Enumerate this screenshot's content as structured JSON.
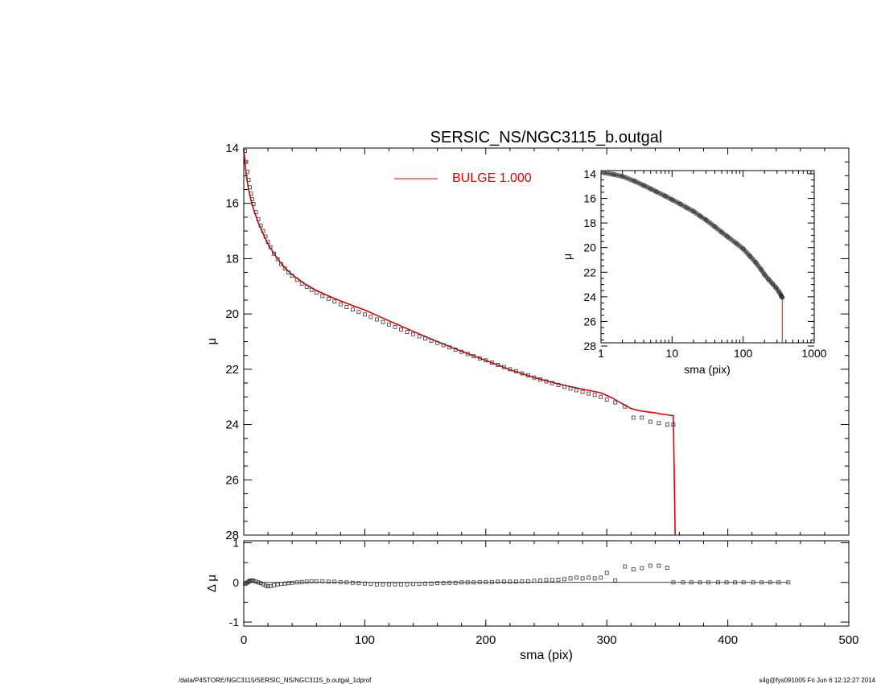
{
  "chart_data": [
    {
      "type": "scatter",
      "title": "SERSIC_NS/NGC3115_b.outgal",
      "xlabel": "",
      "ylabel": "μ",
      "xlim": [
        0,
        500
      ],
      "ylim": [
        28,
        14
      ],
      "x_ticks": [
        "0",
        "100",
        "200",
        "300",
        "400",
        "500"
      ],
      "y_ticks": [
        "14",
        "16",
        "18",
        "20",
        "22",
        "24",
        "26",
        "28"
      ],
      "legend": {
        "label": "BULGE  1.000",
        "color": "#e00000",
        "placement": "top-center"
      },
      "series": [
        {
          "kind": "observed",
          "marker": "open-square",
          "color": "#000000",
          "x": [
            1,
            2,
            3,
            4,
            5,
            6,
            7,
            8,
            10,
            12,
            14,
            16,
            18,
            20,
            22,
            25,
            28,
            31,
            34,
            37,
            40,
            44,
            48,
            52,
            56,
            60,
            65,
            70,
            75,
            80,
            85,
            90,
            95,
            100,
            105,
            110,
            115,
            120,
            125,
            130,
            135,
            140,
            145,
            150,
            155,
            160,
            165,
            170,
            175,
            180,
            185,
            190,
            195,
            200,
            205,
            210,
            215,
            220,
            225,
            230,
            235,
            240,
            245,
            250,
            255,
            260,
            265,
            270,
            275,
            280,
            285,
            290,
            295,
            300,
            307,
            315,
            322,
            329,
            336,
            343,
            350,
            355
          ],
          "y": [
            14.1,
            14.5,
            14.85,
            15.15,
            15.42,
            15.65,
            15.85,
            16.02,
            16.32,
            16.57,
            16.8,
            17.0,
            17.2,
            17.4,
            17.58,
            17.82,
            18.02,
            18.2,
            18.36,
            18.5,
            18.62,
            18.77,
            18.9,
            19.02,
            19.13,
            19.23,
            19.35,
            19.45,
            19.55,
            19.65,
            19.75,
            19.84,
            19.93,
            20.02,
            20.11,
            20.2,
            20.29,
            20.38,
            20.47,
            20.56,
            20.65,
            20.73,
            20.81,
            20.89,
            20.97,
            21.05,
            21.13,
            21.21,
            21.29,
            21.37,
            21.45,
            21.53,
            21.61,
            21.68,
            21.76,
            21.84,
            21.92,
            22.0,
            22.07,
            22.15,
            22.22,
            22.3,
            22.37,
            22.44,
            22.5,
            22.57,
            22.64,
            22.7,
            22.76,
            22.82,
            22.88,
            22.93,
            23.0,
            23.1,
            23.2,
            23.35,
            23.75,
            23.75,
            23.9,
            23.95,
            24.0,
            24.0
          ]
        },
        {
          "kind": "model",
          "name": "BULGE  1.000",
          "color": "#e00000",
          "x": [
            0,
            1,
            2,
            3,
            4,
            5,
            6,
            8,
            10,
            12,
            15,
            18,
            21,
            25,
            30,
            35,
            40,
            50,
            60,
            70,
            80,
            90,
            100,
            120,
            140,
            160,
            180,
            200,
            220,
            240,
            260,
            280,
            295,
            300,
            305,
            310,
            315,
            320,
            325,
            330,
            340,
            345,
            350,
            355,
            356,
            356.5
          ],
          "y": [
            14.0,
            14.55,
            14.95,
            15.25,
            15.5,
            15.7,
            15.88,
            16.2,
            16.45,
            16.7,
            17.0,
            17.3,
            17.55,
            17.82,
            18.12,
            18.38,
            18.58,
            18.9,
            19.15,
            19.35,
            19.53,
            19.7,
            19.86,
            20.25,
            20.63,
            21.0,
            21.35,
            21.68,
            22.02,
            22.3,
            22.53,
            22.72,
            22.85,
            22.95,
            23.05,
            23.18,
            23.3,
            23.42,
            23.48,
            23.52,
            23.58,
            23.62,
            23.65,
            23.68,
            26.5,
            28.5
          ]
        }
      ]
    },
    {
      "type": "line",
      "title": "",
      "xlabel": "sma (pix)",
      "ylabel": "μ",
      "xscale": "log",
      "xlim": [
        1,
        1000
      ],
      "ylim": [
        28,
        14
      ],
      "x_ticks": [
        "1",
        "10",
        "100",
        "1000"
      ],
      "y_ticks": [
        "14",
        "16",
        "18",
        "20",
        "22",
        "24",
        "26",
        "28"
      ],
      "series": [
        {
          "kind": "observed",
          "marker": "open-circle",
          "color": "#404040",
          "x": [
            1.1,
            1.5,
            2,
            3,
            4,
            5,
            6,
            8,
            10,
            13,
            16,
            20,
            25,
            30,
            40,
            50,
            60,
            80,
            100,
            125,
            150,
            180,
            200,
            230,
            260,
            290,
            320,
            340,
            345,
            350,
            355
          ],
          "y": [
            13.9,
            14.05,
            14.2,
            14.6,
            14.95,
            15.22,
            15.45,
            15.8,
            16.1,
            16.45,
            16.75,
            17.05,
            17.45,
            17.75,
            18.3,
            18.75,
            19.1,
            19.65,
            20.1,
            20.7,
            21.2,
            21.8,
            22.2,
            22.6,
            22.95,
            23.25,
            23.6,
            23.85,
            23.95,
            24.0,
            24.05
          ]
        },
        {
          "kind": "cutoff",
          "color": "#8b2a2a",
          "x": [
            355,
            355
          ],
          "y": [
            24.0,
            28.0
          ]
        }
      ]
    },
    {
      "type": "scatter",
      "title": "",
      "xlabel": "sma (pix)",
      "ylabel": "Δ μ",
      "xlim": [
        0,
        500
      ],
      "ylim": [
        -1.1,
        1.05
      ],
      "x_ticks": [
        "0",
        "100",
        "200",
        "300",
        "400",
        "500"
      ],
      "y_ticks": [
        "1",
        "0",
        "-1"
      ],
      "series": [
        {
          "kind": "residual",
          "marker": "open-square",
          "color": "#000000",
          "x": [
            1,
            2,
            3,
            4,
            5,
            6,
            7,
            8,
            10,
            12,
            14,
            16,
            18,
            20,
            22,
            25,
            28,
            31,
            34,
            37,
            40,
            44,
            48,
            52,
            56,
            60,
            65,
            70,
            75,
            80,
            85,
            90,
            95,
            100,
            105,
            110,
            115,
            120,
            125,
            130,
            135,
            140,
            145,
            150,
            155,
            160,
            165,
            170,
            175,
            180,
            185,
            190,
            195,
            200,
            205,
            210,
            215,
            220,
            225,
            230,
            235,
            240,
            245,
            250,
            255,
            260,
            265,
            270,
            275,
            280,
            285,
            290,
            295,
            300,
            307,
            315,
            322,
            329,
            336,
            343,
            350,
            355,
            363,
            370,
            377,
            384,
            392,
            399,
            406,
            413,
            421,
            428,
            435,
            442,
            450
          ],
          "y": [
            -0.04,
            -0.02,
            0.0,
            0.02,
            0.04,
            0.05,
            0.05,
            0.04,
            0.02,
            0.0,
            -0.02,
            -0.05,
            -0.08,
            -0.1,
            -0.09,
            -0.07,
            -0.05,
            -0.04,
            -0.03,
            -0.02,
            -0.01,
            0.0,
            0.01,
            0.02,
            0.03,
            0.03,
            0.03,
            0.02,
            0.02,
            0.01,
            0.0,
            -0.01,
            -0.02,
            -0.03,
            -0.04,
            -0.05,
            -0.05,
            -0.05,
            -0.05,
            -0.05,
            -0.05,
            -0.04,
            -0.04,
            -0.03,
            -0.03,
            -0.02,
            -0.02,
            -0.01,
            -0.01,
            0.0,
            0.0,
            0.0,
            0.01,
            0.01,
            0.01,
            0.02,
            0.02,
            0.02,
            0.02,
            0.03,
            0.03,
            0.04,
            0.05,
            0.06,
            0.06,
            0.07,
            0.08,
            0.1,
            0.12,
            0.1,
            0.12,
            0.1,
            0.12,
            0.24,
            0.05,
            0.4,
            0.33,
            0.36,
            0.42,
            0.42,
            0.37,
            0.0,
            0.0,
            0.0,
            0.0,
            0.0,
            0.0,
            0.0,
            0.0,
            0.0,
            0.0,
            0.0,
            0.0,
            0.0,
            0.0
          ]
        }
      ]
    }
  ],
  "footer": {
    "path": "/data/P4STORE/NGC3115/SERSIC_NS/NGC3115_b.outgal_1dprof",
    "stamp": "s4g@fys091005  Fri Jun  6 12:12:27 2014"
  }
}
